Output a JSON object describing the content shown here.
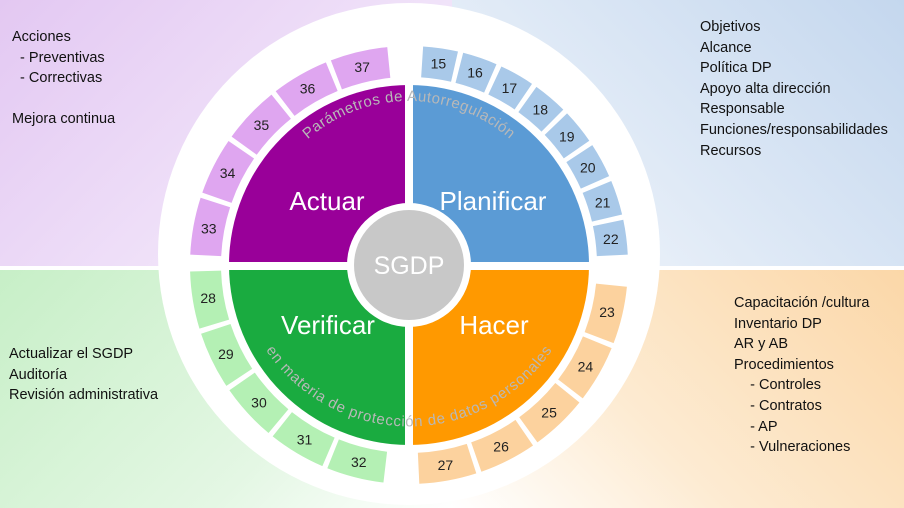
{
  "center": "SGDP",
  "phases": {
    "actuar": "Actuar",
    "planificar": "Planificar",
    "verificar": "Verificar",
    "hacer": "Hacer"
  },
  "arc_texts": {
    "top": "Parámetros de Autorregulación",
    "bottom": "en materia de protección de datos personales"
  },
  "ring_numbers": {
    "actuar": [
      "33",
      "34",
      "35",
      "36",
      "37"
    ],
    "planificar": [
      "15",
      "16",
      "17",
      "18",
      "19",
      "20",
      "21",
      "22"
    ],
    "hacer": [
      "23",
      "24",
      "25",
      "26",
      "27"
    ],
    "verificar": [
      "28",
      "29",
      "30",
      "31",
      "32"
    ]
  },
  "side_text": {
    "top_left": [
      "Acciones",
      "  - Preventivas",
      "  - Correctivas",
      "",
      "Mejora continua"
    ],
    "top_right": [
      "Objetivos",
      "Alcance",
      "Política DP",
      "Apoyo alta dirección",
      "Responsable",
      "Funciones/responsabilidades",
      "Recursos"
    ],
    "bottom_left": [
      "Actualizar el SGDP",
      "Auditoría",
      "Revisión administrativa"
    ],
    "bottom_right": [
      "Capacitación /cultura",
      "Inventario DP",
      "AR y AB",
      "Procedimientos",
      "    - Controles",
      "    - Contratos",
      "    - AP",
      "    - Vulneraciones"
    ]
  },
  "colors": {
    "actuar": "#990099",
    "planificar": "#5b9bd5",
    "verificar": "#1aab40",
    "hacer": "#ff9900",
    "ring_actuar": "#dfa6f0",
    "ring_planificar": "#a9c9e9",
    "ring_verificar": "#b4f0b4",
    "ring_hacer": "#fcd29e",
    "center": "#c8c8c8"
  }
}
